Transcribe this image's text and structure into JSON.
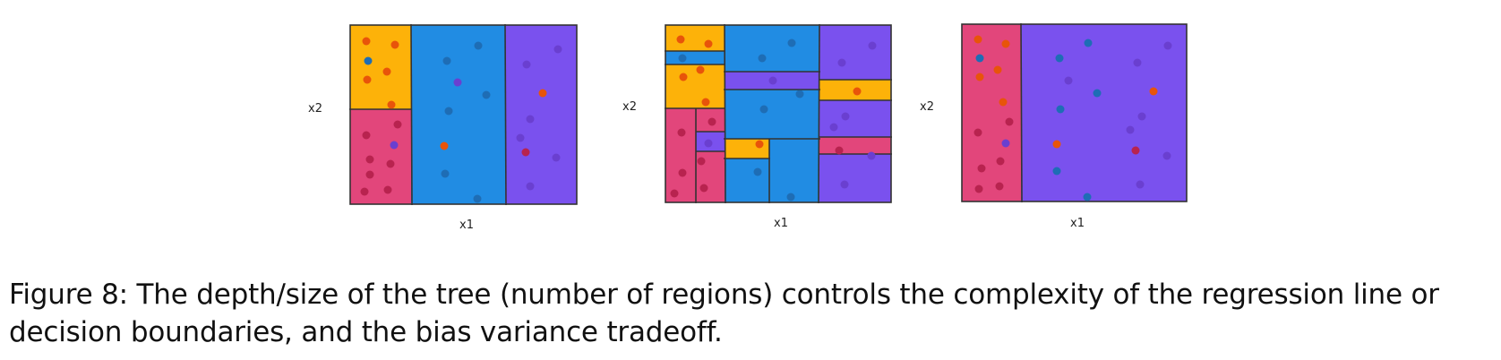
{
  "colors": {
    "orange": "#fdb209",
    "blue": "#218ce3",
    "purple": "#7a51ee",
    "pink": "#e2467b",
    "border": "#333333",
    "dot_orange": "#e8540a",
    "dot_blue": "#1e6db5",
    "dot_purple": "#6a3fd0",
    "dot_pink": "#b8234f"
  },
  "panels": [
    {
      "name": "shallow-tree",
      "x_label": "x1",
      "y_label": "x2"
    },
    {
      "name": "deep-tree",
      "x_label": "x1",
      "y_label": "x2"
    },
    {
      "name": "stump-tree",
      "x_label": "x1",
      "y_label": "x2"
    }
  ],
  "caption": {
    "label": "Figure 8:",
    "text": "The depth/size of the tree (number of regions) controls the complexity of the regression line or decision boundaries, and the bias variance tradeoff."
  }
}
